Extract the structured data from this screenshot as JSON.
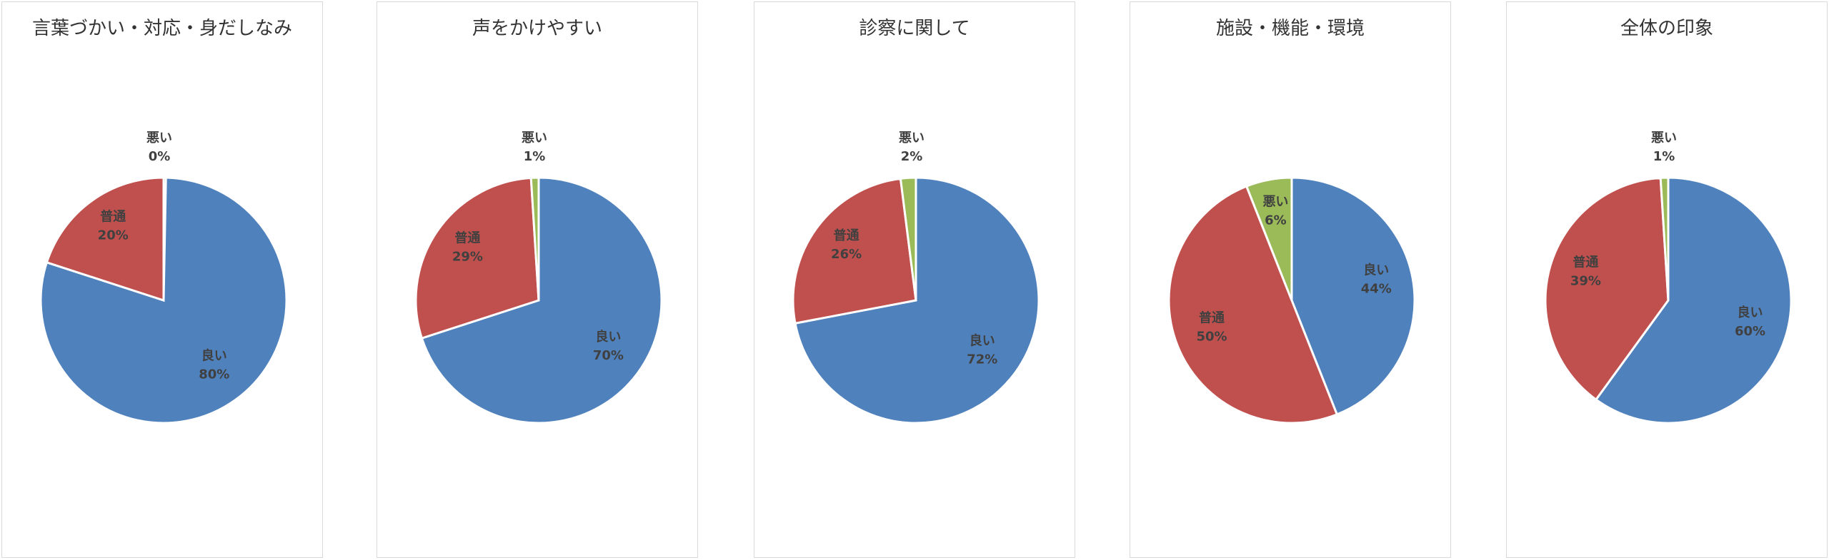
{
  "colors": {
    "良い": "#4f81bd",
    "普通": "#c0504d",
    "悪い": "#9bbb59"
  },
  "chart_data": [
    {
      "type": "pie",
      "title": "言葉づかい・対応・身だしなみ",
      "labels": [
        "良い",
        "普通",
        "悪い"
      ],
      "values": [
        80,
        20,
        0
      ],
      "value_labels": [
        "80%",
        "20%",
        "0%"
      ]
    },
    {
      "type": "pie",
      "title": "声をかけやすい",
      "labels": [
        "良い",
        "普通",
        "悪い"
      ],
      "values": [
        70,
        29,
        1
      ],
      "value_labels": [
        "70%",
        "29%",
        "1%"
      ]
    },
    {
      "type": "pie",
      "title": "診察に関して",
      "labels": [
        "良い",
        "普通",
        "悪い"
      ],
      "values": [
        72,
        26,
        2
      ],
      "value_labels": [
        "72%",
        "26%",
        "2%"
      ]
    },
    {
      "type": "pie",
      "title": "施設・機能・環境",
      "labels": [
        "良い",
        "普通",
        "悪い"
      ],
      "values": [
        44,
        50,
        6
      ],
      "value_labels": [
        "44%",
        "50%",
        "6%"
      ]
    },
    {
      "type": "pie",
      "title": "全体の印象",
      "labels": [
        "良い",
        "普通",
        "悪い"
      ],
      "values": [
        60,
        39,
        1
      ],
      "value_labels": [
        "60%",
        "39%",
        "1%"
      ]
    }
  ]
}
